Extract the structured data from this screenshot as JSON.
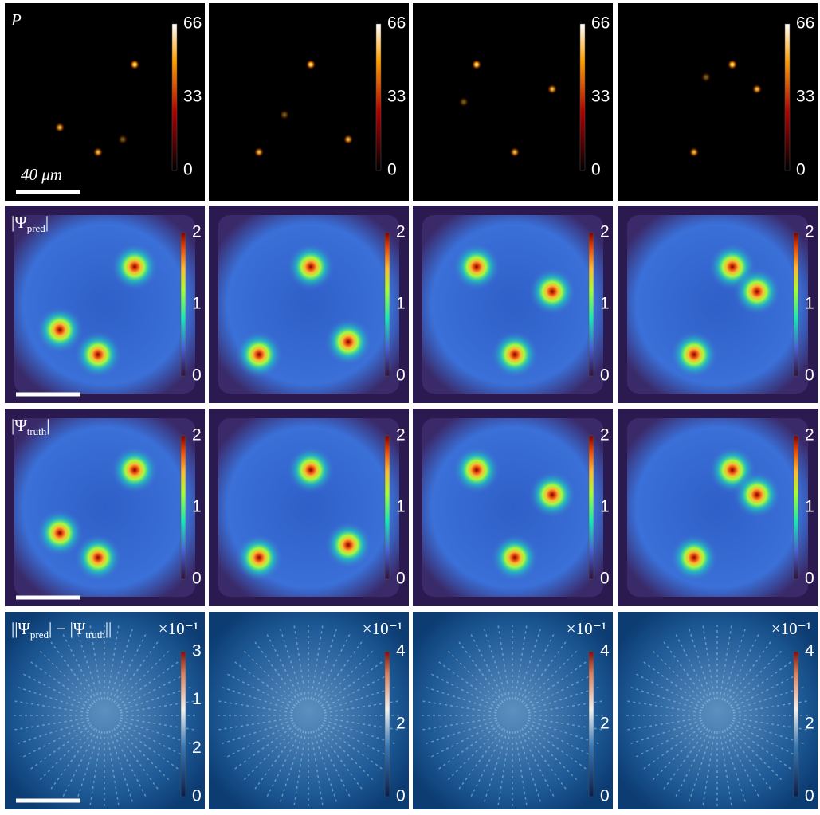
{
  "scale_bar": {
    "label": "40 μm"
  },
  "multiplier": "×10⁻¹",
  "rows": [
    {
      "label": [
        "P"
      ],
      "panels": [
        {
          "ticks": [
            "0",
            "33",
            "66"
          ]
        },
        {
          "ticks": [
            "0",
            "33",
            "66"
          ]
        },
        {
          "ticks": [
            "0",
            "33",
            "66"
          ]
        },
        {
          "ticks": [
            "0",
            "33",
            "66"
          ]
        }
      ]
    },
    {
      "label": [
        "|Ψ",
        "pred",
        "|"
      ],
      "panels": [
        {
          "ticks": [
            "0",
            "1",
            "2"
          ]
        },
        {
          "ticks": [
            "0",
            "1",
            "2"
          ]
        },
        {
          "ticks": [
            "0",
            "1",
            "2"
          ]
        },
        {
          "ticks": [
            "0",
            "1",
            "2"
          ]
        }
      ]
    },
    {
      "label": [
        "|Ψ",
        "truth",
        "|"
      ],
      "panels": [
        {
          "ticks": [
            "0",
            "1",
            "2"
          ]
        },
        {
          "ticks": [
            "0",
            "1",
            "2"
          ]
        },
        {
          "ticks": [
            "0",
            "1",
            "2"
          ]
        },
        {
          "ticks": [
            "0",
            "1",
            "2"
          ]
        }
      ]
    },
    {
      "label": [
        "||Ψ",
        "pred",
        "| − |Ψ",
        "truth",
        "||"
      ],
      "panels": [
        {
          "ticks": [
            "0",
            "2",
            "1",
            "3"
          ]
        },
        {
          "ticks": [
            "0",
            "2",
            "4"
          ]
        },
        {
          "ticks": [
            "0",
            "2",
            "4"
          ]
        },
        {
          "ticks": [
            "0",
            "2",
            "4"
          ]
        }
      ]
    }
  ]
}
